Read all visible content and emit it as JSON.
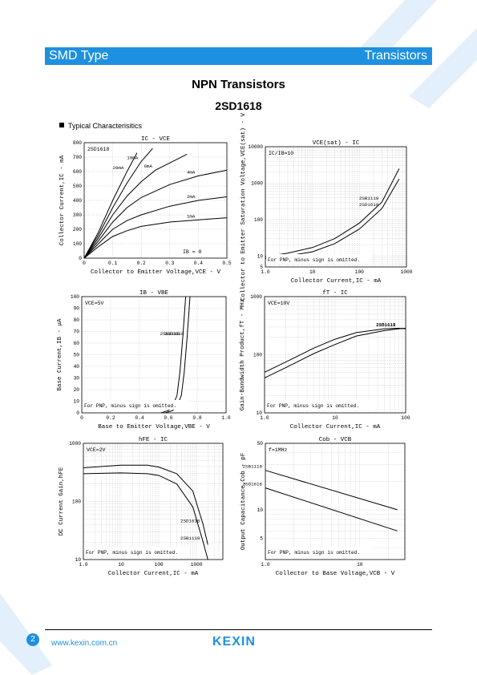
{
  "header": {
    "left": "SMD Type",
    "right": "Transistors"
  },
  "title": "NPN  Transistors",
  "part_number": "2SD1618",
  "section": "Typical  Characterisitics",
  "footer": {
    "page": "2",
    "url": "www.kexin.com.cn",
    "logo": "KEXIN"
  },
  "chart_data": [
    {
      "type": "line",
      "title": "IC - VCE",
      "xlabel": "Collector to Emitter Voltage,VCE - V",
      "ylabel": "Collector Current,IC - mA",
      "xlim": [
        0,
        0.5
      ],
      "ylim": [
        0,
        800
      ],
      "xticks": [
        "0",
        "0.1",
        "0.2",
        "0.3",
        "0.4",
        "0.5"
      ],
      "yticks": [
        "0",
        "100",
        "200",
        "300",
        "400",
        "500",
        "600",
        "700",
        "800"
      ],
      "annotations": [
        "2SD1618",
        "IB = 0"
      ],
      "series": [
        {
          "name": "1mA",
          "x": [
            0,
            0.05,
            0.1,
            0.15,
            0.2,
            0.3,
            0.4,
            0.5
          ],
          "y": [
            0,
            80,
            150,
            190,
            220,
            250,
            265,
            280
          ]
        },
        {
          "name": "2mA",
          "x": [
            0,
            0.05,
            0.1,
            0.15,
            0.2,
            0.3,
            0.4,
            0.5
          ],
          "y": [
            0,
            100,
            200,
            260,
            300,
            360,
            400,
            425
          ]
        },
        {
          "name": "4mA",
          "x": [
            0,
            0.05,
            0.1,
            0.15,
            0.2,
            0.3,
            0.4,
            0.5
          ],
          "y": [
            0,
            120,
            250,
            350,
            420,
            510,
            570,
            610
          ]
        },
        {
          "name": "6mA",
          "x": [
            0,
            0.05,
            0.1,
            0.15,
            0.2,
            0.25,
            0.36
          ],
          "y": [
            0,
            140,
            300,
            430,
            530,
            610,
            720
          ]
        },
        {
          "name": "10mA",
          "x": [
            0,
            0.05,
            0.1,
            0.15,
            0.2,
            0.24
          ],
          "y": [
            0,
            160,
            350,
            520,
            670,
            760
          ]
        },
        {
          "name": "20mA",
          "x": [
            0,
            0.05,
            0.1,
            0.15,
            0.185
          ],
          "y": [
            0,
            180,
            400,
            600,
            730
          ]
        }
      ]
    },
    {
      "type": "line",
      "title": "VCE(sat) - IC",
      "xlabel": "Collector Current,IC - mA",
      "ylabel": "Collector to Emitter Saturation Voltage,VCE(sat) - V",
      "xscale": "log",
      "yscale": "log",
      "xlim": [
        1,
        1000
      ],
      "ylim": [
        5,
        10000
      ],
      "xticks": [
        "1.0",
        "10",
        "100",
        "1000"
      ],
      "yticks": [
        "5",
        "10",
        "100",
        "1000",
        "10000"
      ],
      "annotations": [
        "IC/IB=10",
        "For PNP, minus sign is omitted."
      ],
      "series": [
        {
          "name": "2SB1118",
          "x": [
            1,
            3,
            10,
            30,
            100,
            300,
            700
          ],
          "y": [
            9.5,
            12,
            17,
            30,
            80,
            300,
            2500
          ]
        },
        {
          "name": "2SD1618",
          "x": [
            1,
            3,
            10,
            30,
            100,
            300,
            700
          ],
          "y": [
            8.5,
            10,
            13,
            22,
            55,
            200,
            1300
          ]
        }
      ]
    },
    {
      "type": "line",
      "title": "IB - VBE",
      "xlabel": "Base to Emitter Voltage,VBE - V",
      "ylabel": "Base Current,IB - μA",
      "xlim": [
        0,
        1.0
      ],
      "ylim": [
        0,
        100
      ],
      "xticks": [
        "0",
        "0.2",
        "0.4",
        "0.6",
        "0.8",
        "1.0"
      ],
      "yticks": [
        "0",
        "10",
        "20",
        "30",
        "40",
        "50",
        "60",
        "70",
        "80",
        "90",
        "100"
      ],
      "annotations": [
        "VCE=5V",
        "For PNP, minus sign is omitted."
      ],
      "series": [
        {
          "name": "2SB1118",
          "x": [
            0.55,
            0.6,
            0.63,
            0.66,
            0.68,
            0.7,
            0.72
          ],
          "y": [
            0,
            2,
            6,
            15,
            35,
            65,
            100
          ]
        },
        {
          "name": "2SD1618",
          "x": [
            0.58,
            0.63,
            0.66,
            0.69,
            0.71,
            0.73,
            0.75
          ],
          "y": [
            0,
            2,
            6,
            15,
            35,
            65,
            100
          ]
        }
      ]
    },
    {
      "type": "line",
      "title": "fT - IC",
      "xlabel": "Collector Current,IC - mA",
      "ylabel": "Gain-Bandwidth Product,fT - MHz",
      "xscale": "log",
      "yscale": "log",
      "xlim": [
        1,
        100
      ],
      "ylim": [
        10,
        1000
      ],
      "xticks": [
        "1.0",
        "10",
        "100"
      ],
      "yticks": [
        "10",
        "100",
        "1000"
      ],
      "annotations": [
        "VCE=10V",
        "For PNP, minus sign is omitted."
      ],
      "series": [
        {
          "name": "2SB1118",
          "x": [
            1,
            2,
            5,
            10,
            20,
            50,
            80,
            100
          ],
          "y": [
            50,
            75,
            130,
            185,
            240,
            280,
            285,
            280
          ]
        },
        {
          "name": "2SD1618",
          "x": [
            1,
            2,
            5,
            10,
            20,
            50,
            80,
            100
          ],
          "y": [
            40,
            60,
            105,
            150,
            210,
            260,
            280,
            285
          ]
        }
      ]
    },
    {
      "type": "line",
      "title": "hFE - IC",
      "xlabel": "Collector Current,IC - mA",
      "ylabel": "DC Current Gain,hFE",
      "xscale": "log",
      "yscale": "log",
      "xlim": [
        1,
        5000
      ],
      "ylim": [
        10,
        1000
      ],
      "xticks": [
        "1.0",
        "10",
        "100",
        "1000"
      ],
      "yticks": [
        "10",
        "100",
        "1000"
      ],
      "annotations": [
        "VCE=2V",
        "For PNP, minus sign is omitted."
      ],
      "series": [
        {
          "name": "2SD1618",
          "x": [
            1,
            10,
            50,
            100,
            300,
            800,
            1500,
            2000
          ],
          "y": [
            380,
            420,
            420,
            390,
            300,
            150,
            40,
            18
          ]
        },
        {
          "name": "2SB1118",
          "x": [
            1,
            10,
            50,
            100,
            300,
            800,
            1500,
            2000
          ],
          "y": [
            300,
            310,
            300,
            280,
            200,
            80,
            20,
            10
          ]
        }
      ]
    },
    {
      "type": "line",
      "title": "Cob - VCB",
      "xlabel": "Collector to Base Voltage,VCB - V",
      "ylabel": "Output Capacitance,Cob - pF",
      "xscale": "log",
      "yscale": "log",
      "xlim": [
        1,
        30
      ],
      "ylim": [
        3,
        50
      ],
      "xticks": [
        "1.0",
        "10"
      ],
      "yticks": [
        "5",
        "10",
        "50"
      ],
      "annotations": [
        "f=1MHz",
        "For PNP, minus sign is omitted."
      ],
      "series": [
        {
          "name": "2SB1118",
          "x": [
            1,
            25
          ],
          "y": [
            26,
            10
          ]
        },
        {
          "name": "2SD1618",
          "x": [
            1,
            25
          ],
          "y": [
            17,
            6
          ]
        }
      ]
    }
  ]
}
